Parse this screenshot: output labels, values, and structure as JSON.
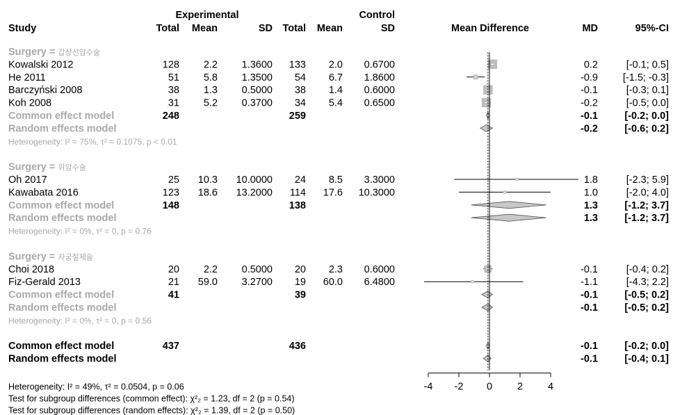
{
  "header": {
    "study": "Study",
    "experimental": "Experimental",
    "control": "Control",
    "total": "Total",
    "mean": "Mean",
    "sd": "SD",
    "mean_difference": "Mean Difference",
    "md": "MD",
    "ci": "95%-CI"
  },
  "chart_data": {
    "type": "forest",
    "xlim": [
      -4,
      4
    ],
    "xticks": [
      "-4",
      "-2",
      "0",
      "2",
      "4"
    ],
    "reference_line": 0,
    "colors": {
      "box": "#bdbdbd",
      "diamond": "#c8c8c8",
      "grey_text": "#a8a8a8"
    },
    "rows": [
      {
        "kind": "group",
        "prefix": "Surgery = ",
        "name": "갑상선암수술"
      },
      {
        "kind": "study",
        "study": "Kowalski 2012",
        "e_total": "128",
        "e_mean": "2.2",
        "e_sd": "1.3600",
        "c_total": "133",
        "c_mean": "2.0",
        "c_sd": "0.6700",
        "md_text": "0.2",
        "ci_text": "[-0.1;  0.5]",
        "md": 0.2,
        "lo": -0.1,
        "hi": 0.5,
        "weight": 4
      },
      {
        "kind": "study",
        "study": "He 2011",
        "e_total": "51",
        "e_mean": "5.8",
        "e_sd": "1.3500",
        "c_total": "54",
        "c_mean": "6.7",
        "c_sd": "1.8600",
        "md_text": "-0.9",
        "ci_text": "[-1.5; -0.3]",
        "md": -0.9,
        "lo": -1.5,
        "hi": -0.3,
        "weight": 1.5
      },
      {
        "kind": "study",
        "study": "Barczyński 2008",
        "e_total": "38",
        "e_mean": "1.3",
        "e_sd": "0.5000",
        "c_total": "38",
        "c_mean": "1.4",
        "c_sd": "0.6000",
        "md_text": "-0.1",
        "ci_text": "[-0.3;  0.1]",
        "md": -0.1,
        "lo": -0.3,
        "hi": 0.1,
        "weight": 4
      },
      {
        "kind": "study",
        "study": "Koh 2008",
        "e_total": "31",
        "e_mean": "5.2",
        "e_sd": "0.3700",
        "c_total": "34",
        "c_mean": "5.4",
        "c_sd": "0.6500",
        "md_text": "-0.2",
        "ci_text": "[-0.5;  0.0]",
        "md": -0.2,
        "lo": -0.5,
        "hi": 0.0,
        "weight": 4
      },
      {
        "kind": "common",
        "label": "Common effect model",
        "e_total": "248",
        "c_total": "259",
        "md_text": "-0.1",
        "ci_text": "[-0.2;  0.0]",
        "md": -0.1,
        "lo": -0.2,
        "hi": 0.0,
        "grey": true
      },
      {
        "kind": "random",
        "label": "Random effects model",
        "md_text": "-0.2",
        "ci_text": "[-0.6;  0.2]",
        "md": -0.2,
        "lo": -0.6,
        "hi": 0.2,
        "grey": true
      },
      {
        "kind": "het",
        "label": "Heterogeneity: I² = 75%, τ² = 0.1075, p < 0.01"
      },
      {
        "kind": "blank"
      },
      {
        "kind": "group",
        "prefix": "Surgery = ",
        "name": "위암수술"
      },
      {
        "kind": "study",
        "study": "Oh 2017",
        "e_total": "25",
        "e_mean": "10.3",
        "e_sd": "10.0000",
        "c_total": "24",
        "c_mean": "8.5",
        "c_sd": "3.3000",
        "md_text": "1.8",
        "ci_text": "[-2.3;  5.9]",
        "md": 1.8,
        "lo": -2.3,
        "hi": 5.9,
        "weight": 0.5
      },
      {
        "kind": "study",
        "study": "Kawabata 2016",
        "e_total": "123",
        "e_mean": "18.6",
        "e_sd": "13.2000",
        "c_total": "114",
        "c_mean": "17.6",
        "c_sd": "10.3000",
        "md_text": "1.0",
        "ci_text": "[-2.0;  4.0]",
        "md": 1.0,
        "lo": -2.0,
        "hi": 4.0,
        "weight": 0.6
      },
      {
        "kind": "common",
        "label": "Common effect model",
        "e_total": "148",
        "c_total": "138",
        "md_text": "1.3",
        "ci_text": "[-1.2;  3.7]",
        "md": 1.3,
        "lo": -1.2,
        "hi": 3.7,
        "grey": true
      },
      {
        "kind": "random",
        "label": "Random effects model",
        "md_text": "1.3",
        "ci_text": "[-1.2;  3.7]",
        "md": 1.3,
        "lo": -1.2,
        "hi": 3.7,
        "grey": true
      },
      {
        "kind": "het",
        "label": "Heterogeneity: I² = 0%, τ² = 0, p = 0.76"
      },
      {
        "kind": "blank"
      },
      {
        "kind": "group",
        "prefix": "Surgery = ",
        "name": "자궁절제술"
      },
      {
        "kind": "study",
        "study": "Choi 2018",
        "e_total": "20",
        "e_mean": "2.2",
        "e_sd": "0.5000",
        "c_total": "20",
        "c_mean": "2.3",
        "c_sd": "0.6000",
        "md_text": "-0.1",
        "ci_text": "[-0.4;  0.2]",
        "md": -0.1,
        "lo": -0.4,
        "hi": 0.2,
        "weight": 3
      },
      {
        "kind": "study",
        "study": "Fiz-Gerald 2013",
        "e_total": "21",
        "e_mean": "59.0",
        "e_sd": "3.2700",
        "c_total": "19",
        "c_mean": "60.0",
        "c_sd": "6.4800",
        "md_text": "-1.1",
        "ci_text": "[-4.3;  2.2]",
        "md": -1.1,
        "lo": -4.3,
        "hi": 2.2,
        "weight": 0.5
      },
      {
        "kind": "common",
        "label": "Common effect model",
        "e_total": "41",
        "c_total": "39",
        "md_text": "-0.1",
        "ci_text": "[-0.5;  0.2]",
        "md": -0.1,
        "lo": -0.5,
        "hi": 0.2,
        "grey": true
      },
      {
        "kind": "random",
        "label": "Random effects model",
        "md_text": "-0.1",
        "ci_text": "[-0.5;  0.2]",
        "md": -0.1,
        "lo": -0.5,
        "hi": 0.2,
        "grey": true
      },
      {
        "kind": "het",
        "label": "Heterogeneity: I² = 0%, τ² = 0, p = 0.56"
      },
      {
        "kind": "blank"
      },
      {
        "kind": "common",
        "label": "Common effect model",
        "e_total": "437",
        "c_total": "436",
        "md_text": "-0.1",
        "ci_text": "[-0.2;  0.0]",
        "md": -0.1,
        "lo": -0.2,
        "hi": 0.0,
        "grey": false
      },
      {
        "kind": "random",
        "label": "Random effects model",
        "md_text": "-0.1",
        "ci_text": "[-0.4;  0.1]",
        "md": -0.1,
        "lo": -0.4,
        "hi": 0.1,
        "grey": false
      }
    ],
    "footer": [
      "Heterogeneity: I² = 49%, τ² = 0.0504, p = 0.06",
      "Test for subgroup differences (common effect): χ²₂ = 1.23, df = 2 (p = 0.54)",
      "Test for subgroup differences (random effects): χ²₂ = 1.39, df = 2 (p = 0.50)"
    ]
  }
}
